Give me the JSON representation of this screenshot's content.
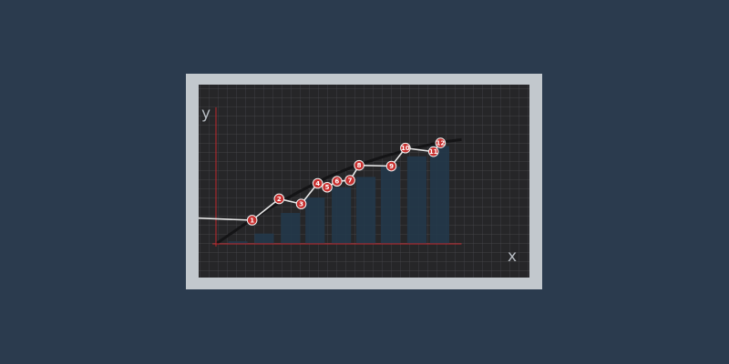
{
  "colors": {
    "page_background": "#2b3b4e",
    "frame": "#c2c8cd",
    "board": "#262628",
    "grid_line": "#4a4a4e",
    "axis": "#c0282d",
    "line": "#e8e8e8",
    "marker": "#c8302f",
    "marker_stroke": "#f2f2f2",
    "bar": "#23384a",
    "curve": "#141416"
  },
  "chart_data": {
    "type": "line",
    "title": "",
    "xlabel": "x",
    "ylabel": "y",
    "grid": true,
    "point_labels": [
      "1",
      "2",
      "3",
      "4",
      "5",
      "6",
      "7",
      "8",
      "9",
      "10",
      "11",
      "12"
    ],
    "x": [
      1.03,
      1.8,
      2.43,
      2.9,
      3.17,
      3.45,
      3.82,
      4.08,
      5.0,
      5.4,
      6.2,
      6.4
    ],
    "values": [
      0.92,
      1.75,
      1.55,
      2.35,
      2.2,
      2.43,
      2.47,
      3.05,
      3.02,
      3.72,
      3.58,
      3.92
    ],
    "line_start": {
      "x": -0.5,
      "y": 1.0
    },
    "bars": [
      {
        "x0": 0.35,
        "x1": 0.9,
        "top": 0.1
      },
      {
        "x0": 1.1,
        "x1": 1.65,
        "top": 0.4
      },
      {
        "x0": 1.85,
        "x1": 2.4,
        "top": 1.2
      },
      {
        "x0": 2.55,
        "x1": 3.1,
        "top": 1.8
      },
      {
        "x0": 3.3,
        "x1": 3.85,
        "top": 2.2
      },
      {
        "x0": 4.0,
        "x1": 4.55,
        "top": 2.6
      },
      {
        "x0": 4.7,
        "x1": 5.25,
        "top": 3.0
      },
      {
        "x0": 5.45,
        "x1": 6.0,
        "top": 3.4
      },
      {
        "x0": 6.1,
        "x1": 6.65,
        "top": 3.8
      }
    ],
    "curve": [
      [
        0.0,
        0.0
      ],
      [
        0.8,
        0.75
      ],
      [
        1.6,
        1.45
      ],
      [
        2.4,
        2.05
      ],
      [
        3.2,
        2.6
      ],
      [
        4.0,
        3.05
      ],
      [
        4.8,
        3.4
      ],
      [
        5.6,
        3.7
      ],
      [
        6.4,
        3.95
      ],
      [
        7.0,
        4.05
      ]
    ],
    "xlim": [
      -0.5,
      7.0
    ],
    "ylim": [
      -0.2,
      5.3
    ]
  }
}
